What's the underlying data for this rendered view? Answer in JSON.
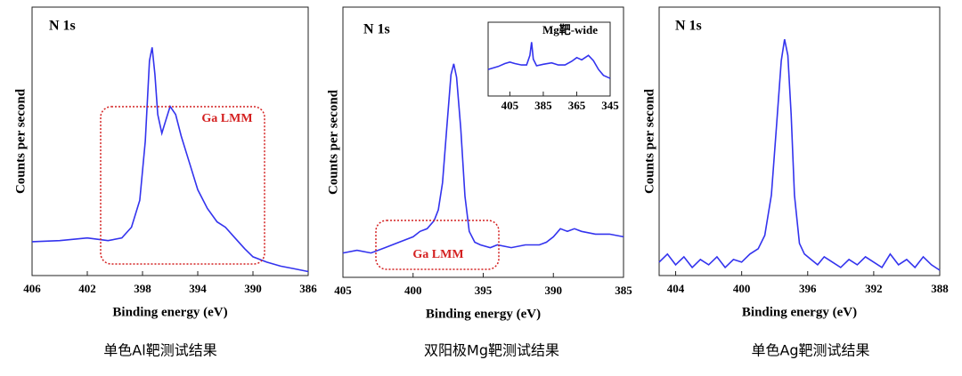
{
  "chart_data": [
    {
      "type": "line",
      "title": "N 1s",
      "y_label": "Counts per second",
      "x_label": "Binding energy (eV)",
      "caption": "单色Al靶测试结果",
      "annotation": "Ga LMM",
      "color": "#3333ee",
      "xlim": [
        406,
        386
      ],
      "xticks": [
        406,
        402,
        398,
        394,
        390,
        386
      ],
      "ylim": [
        0,
        100
      ],
      "x": [
        406,
        404,
        402,
        400.5,
        399.5,
        398.8,
        398.2,
        397.8,
        397.5,
        397.3,
        397.1,
        396.9,
        396.6,
        396.3,
        396.0,
        395.6,
        395.2,
        394.6,
        394.0,
        393.3,
        392.6,
        392.0,
        391.3,
        390.6,
        390.0,
        389.0,
        388.0,
        387.0,
        386.0
      ],
      "values": [
        12.6,
        13,
        14,
        13,
        14,
        18,
        28,
        50,
        80,
        85,
        75,
        60,
        53,
        58,
        63,
        60,
        52,
        42,
        32,
        25,
        20,
        18,
        14,
        10,
        7,
        5,
        3.5,
        2.5,
        1.5
      ]
    },
    {
      "type": "line",
      "title": "N 1s",
      "y_label": "Counts per second",
      "x_label": "Binding energy (eV)",
      "caption": "双阳极Mg靶测试结果",
      "annotation": "Ga LMM",
      "color": "#3333ee",
      "xlim": [
        405,
        385
      ],
      "xticks": [
        405,
        400,
        395,
        390,
        385
      ],
      "ylim": [
        0,
        100
      ],
      "x": [
        405,
        404,
        403,
        402,
        401,
        400,
        399.5,
        399,
        398.5,
        398.2,
        397.9,
        397.6,
        397.3,
        397.1,
        396.9,
        396.6,
        396.3,
        396,
        395.6,
        395.2,
        394.5,
        394,
        393,
        392,
        391,
        390.5,
        390,
        389.5,
        389,
        388.5,
        388,
        387,
        386,
        385
      ],
      "values": [
        9,
        10,
        9,
        11,
        13,
        15,
        17,
        18,
        21,
        25,
        35,
        55,
        75,
        79,
        74,
        55,
        30,
        17,
        13,
        12,
        11,
        12,
        11,
        12,
        12,
        13,
        15,
        18,
        17,
        18,
        17,
        16,
        16,
        15
      ]
    },
    {
      "type": "line",
      "title": "Mg靶-wide",
      "color": "#3333ee",
      "xlim": [
        418,
        345
      ],
      "xticks": [
        405,
        385,
        365,
        345
      ],
      "ylim": [
        0,
        100
      ],
      "x": [
        418,
        412,
        408,
        405,
        402,
        398,
        395,
        393,
        392,
        391,
        389,
        385,
        380,
        376,
        372,
        368,
        365,
        362,
        358,
        355,
        352,
        349,
        346,
        345
      ],
      "values": [
        36,
        40,
        44,
        46,
        44,
        42,
        42,
        55,
        73,
        50,
        41,
        43,
        45,
        42,
        42,
        47,
        52,
        49,
        55,
        48,
        36,
        28,
        25,
        24
      ]
    },
    {
      "type": "line",
      "title": "N 1s",
      "y_label": "Counts per second",
      "x_label": "Binding energy (eV)",
      "caption": "单色Ag靶测试结果",
      "color": "#3333ee",
      "xlim": [
        405,
        388
      ],
      "xticks": [
        404,
        400,
        396,
        392,
        388
      ],
      "ylim": [
        0,
        100
      ],
      "x": [
        405,
        404.5,
        404,
        403.5,
        403,
        402.5,
        402,
        401.5,
        401,
        400.5,
        400,
        399.5,
        399,
        398.6,
        398.2,
        397.9,
        397.6,
        397.4,
        397.2,
        397.0,
        396.8,
        396.5,
        396.2,
        395.8,
        395.4,
        395,
        394.5,
        394,
        393.5,
        393,
        392.5,
        392,
        391.5,
        391,
        390.5,
        390,
        389.5,
        389,
        388.5,
        388
      ],
      "values": [
        5,
        8,
        4,
        7,
        3,
        6,
        4,
        7,
        3,
        6,
        5,
        8,
        10,
        15,
        30,
        55,
        80,
        88,
        82,
        60,
        30,
        12,
        8,
        6,
        4,
        7,
        5,
        3,
        6,
        4,
        7,
        5,
        3,
        8,
        4,
        6,
        3,
        7,
        4,
        2
      ]
    }
  ]
}
